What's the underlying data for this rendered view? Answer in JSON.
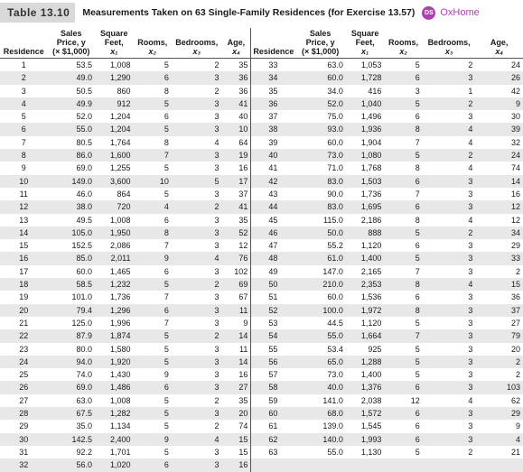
{
  "header": {
    "table_label": "Table 13.10",
    "caption": "Measurements Taken on 63 Single-Family Residences (for Exercise 13.57)",
    "ds_badge": "DS",
    "dataset_name": "OxHome"
  },
  "columns": {
    "residence": "Residence",
    "price": [
      "Sales",
      "Price, y",
      "(× $1,000)"
    ],
    "feet": [
      "Square",
      "Feet,",
      "x₁"
    ],
    "rooms": [
      "Rooms,",
      "x₂"
    ],
    "bedrooms": [
      "Bedrooms,",
      "x₃"
    ],
    "age": [
      "Age,",
      "x₄"
    ]
  },
  "rows_left": [
    [
      "1",
      "53.5",
      "1,008",
      "5",
      "2",
      "35"
    ],
    [
      "2",
      "49.0",
      "1,290",
      "6",
      "3",
      "36"
    ],
    [
      "3",
      "50.5",
      "860",
      "8",
      "2",
      "36"
    ],
    [
      "4",
      "49.9",
      "912",
      "5",
      "3",
      "41"
    ],
    [
      "5",
      "52.0",
      "1,204",
      "6",
      "3",
      "40"
    ],
    [
      "6",
      "55.0",
      "1,204",
      "5",
      "3",
      "10"
    ],
    [
      "7",
      "80.5",
      "1,764",
      "8",
      "4",
      "64"
    ],
    [
      "8",
      "86.0",
      "1,600",
      "7",
      "3",
      "19"
    ],
    [
      "9",
      "69.0",
      "1,255",
      "5",
      "3",
      "16"
    ],
    [
      "10",
      "149.0",
      "3,600",
      "10",
      "5",
      "17"
    ],
    [
      "11",
      "46.0",
      "864",
      "5",
      "3",
      "37"
    ],
    [
      "12",
      "38.0",
      "720",
      "4",
      "2",
      "41"
    ],
    [
      "13",
      "49.5",
      "1,008",
      "6",
      "3",
      "35"
    ],
    [
      "14",
      "105.0",
      "1,950",
      "8",
      "3",
      "52"
    ],
    [
      "15",
      "152.5",
      "2,086",
      "7",
      "3",
      "12"
    ],
    [
      "16",
      "85.0",
      "2,011",
      "9",
      "4",
      "76"
    ],
    [
      "17",
      "60.0",
      "1,465",
      "6",
      "3",
      "102"
    ],
    [
      "18",
      "58.5",
      "1,232",
      "5",
      "2",
      "69"
    ],
    [
      "19",
      "101.0",
      "1,736",
      "7",
      "3",
      "67"
    ],
    [
      "20",
      "79.4",
      "1,296",
      "6",
      "3",
      "11"
    ],
    [
      "21",
      "125.0",
      "1,996",
      "7",
      "3",
      "9"
    ],
    [
      "22",
      "87.9",
      "1,874",
      "5",
      "2",
      "14"
    ],
    [
      "23",
      "80.0",
      "1,580",
      "5",
      "3",
      "11"
    ],
    [
      "24",
      "94.0",
      "1,920",
      "5",
      "3",
      "14"
    ],
    [
      "25",
      "74.0",
      "1,430",
      "9",
      "3",
      "16"
    ],
    [
      "26",
      "69.0",
      "1,486",
      "6",
      "3",
      "27"
    ],
    [
      "27",
      "63.0",
      "1,008",
      "5",
      "2",
      "35"
    ],
    [
      "28",
      "67.5",
      "1,282",
      "5",
      "3",
      "20"
    ],
    [
      "29",
      "35.0",
      "1,134",
      "5",
      "2",
      "74"
    ],
    [
      "30",
      "142.5",
      "2,400",
      "9",
      "4",
      "15"
    ],
    [
      "31",
      "92.2",
      "1,701",
      "5",
      "3",
      "15"
    ],
    [
      "32",
      "56.0",
      "1,020",
      "6",
      "3",
      "16"
    ]
  ],
  "rows_right": [
    [
      "33",
      "63.0",
      "1,053",
      "5",
      "2",
      "24"
    ],
    [
      "34",
      "60.0",
      "1,728",
      "6",
      "3",
      "26"
    ],
    [
      "35",
      "34.0",
      "416",
      "3",
      "1",
      "42"
    ],
    [
      "36",
      "52.0",
      "1,040",
      "5",
      "2",
      "9"
    ],
    [
      "37",
      "75.0",
      "1,496",
      "6",
      "3",
      "30"
    ],
    [
      "38",
      "93.0",
      "1,936",
      "8",
      "4",
      "39"
    ],
    [
      "39",
      "60.0",
      "1,904",
      "7",
      "4",
      "32"
    ],
    [
      "40",
      "73.0",
      "1,080",
      "5",
      "2",
      "24"
    ],
    [
      "41",
      "71.0",
      "1,768",
      "8",
      "4",
      "74"
    ],
    [
      "42",
      "83.0",
      "1,503",
      "6",
      "3",
      "14"
    ],
    [
      "43",
      "90.0",
      "1,736",
      "7",
      "3",
      "16"
    ],
    [
      "44",
      "83.0",
      "1,695",
      "6",
      "3",
      "12"
    ],
    [
      "45",
      "115.0",
      "2,186",
      "8",
      "4",
      "12"
    ],
    [
      "46",
      "50.0",
      "888",
      "5",
      "2",
      "34"
    ],
    [
      "47",
      "55.2",
      "1,120",
      "6",
      "3",
      "29"
    ],
    [
      "48",
      "61.0",
      "1,400",
      "5",
      "3",
      "33"
    ],
    [
      "49",
      "147.0",
      "2,165",
      "7",
      "3",
      "2"
    ],
    [
      "50",
      "210.0",
      "2,353",
      "8",
      "4",
      "15"
    ],
    [
      "51",
      "60.0",
      "1,536",
      "6",
      "3",
      "36"
    ],
    [
      "52",
      "100.0",
      "1,972",
      "8",
      "3",
      "37"
    ],
    [
      "53",
      "44.5",
      "1,120",
      "5",
      "3",
      "27"
    ],
    [
      "54",
      "55.0",
      "1,664",
      "7",
      "3",
      "79"
    ],
    [
      "55",
      "53.4",
      "925",
      "5",
      "3",
      "20"
    ],
    [
      "56",
      "65.0",
      "1,288",
      "5",
      "3",
      "2"
    ],
    [
      "57",
      "73.0",
      "1,400",
      "5",
      "3",
      "2"
    ],
    [
      "58",
      "40.0",
      "1,376",
      "6",
      "3",
      "103"
    ],
    [
      "59",
      "141.0",
      "2,038",
      "12",
      "4",
      "62"
    ],
    [
      "60",
      "68.0",
      "1,572",
      "6",
      "3",
      "29"
    ],
    [
      "61",
      "139.0",
      "1,545",
      "6",
      "3",
      "9"
    ],
    [
      "62",
      "140.0",
      "1,993",
      "6",
      "3",
      "4"
    ],
    [
      "63",
      "55.0",
      "1,130",
      "5",
      "2",
      "21"
    ],
    [
      "",
      "",
      "",
      "",
      "",
      ""
    ]
  ]
}
